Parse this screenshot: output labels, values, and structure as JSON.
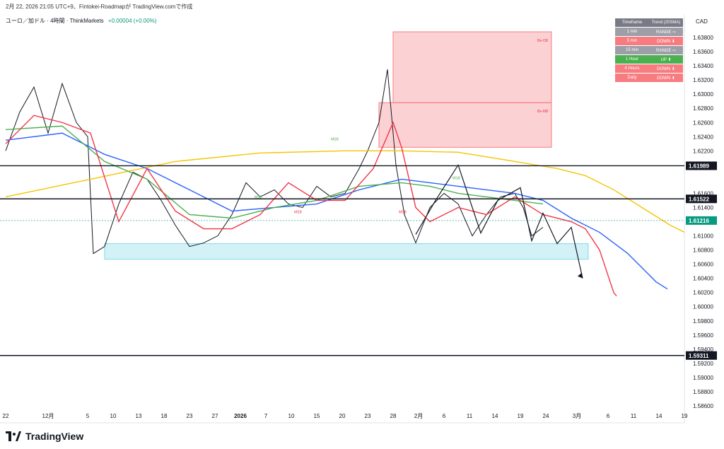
{
  "caption": "2月 22, 2026 21:05 UTC+9、Fintokei-Roadmapが TradingView.comで作成",
  "legend": {
    "symbol": "ユーロ／加ドル · 4時間 · ThinkMarkets",
    "change": "+0.00004 (+0.00%)"
  },
  "currency": "CAD",
  "brand": "TradingView",
  "trend_table": {
    "headers": [
      "Timeframe",
      "Trend (20SMA)"
    ],
    "rows": [
      {
        "tf": "1 min",
        "trend": "RANGE ⇨",
        "color": "gray"
      },
      {
        "tf": "5 min",
        "trend": "DOWN ⬇",
        "color": "red"
      },
      {
        "tf": "15 min",
        "trend": "RANGE ⇨",
        "color": "gray"
      },
      {
        "tf": "1 Hour",
        "trend": "UP ⬆",
        "color": "green"
      },
      {
        "tf": "4 Hours",
        "trend": "DOWN ⬇",
        "color": "red"
      },
      {
        "tf": "Daily",
        "trend": "DOWN ⬇",
        "color": "red"
      }
    ]
  },
  "chart_data": {
    "type": "line",
    "title": "ユーロ／加ドル · 4時間 · ThinkMarkets",
    "xlabel": "",
    "ylabel": "",
    "ylim": [
      1.5852,
      1.6398
    ],
    "y_ticks": [
      "1.63800",
      "1.63600",
      "1.63400",
      "1.63200",
      "1.63000",
      "1.62800",
      "1.62600",
      "1.62400",
      "1.62200",
      "1.61600",
      "1.61400",
      "1.61000",
      "1.60800",
      "1.60600",
      "1.60400",
      "1.60200",
      "1.60000",
      "1.59800",
      "1.59600",
      "1.59400",
      "1.59200",
      "1.59000",
      "1.58800",
      "1.58600"
    ],
    "x_ticks": [
      "22",
      "12月",
      "5",
      "10",
      "13",
      "18",
      "23",
      "27",
      "2026",
      "7",
      "10",
      "15",
      "20",
      "23",
      "28",
      "2月",
      "6",
      "11",
      "14",
      "19",
      "24",
      "3月",
      "6",
      "11",
      "14",
      "19"
    ],
    "x_tick_idx": [
      0,
      15,
      29,
      38,
      47,
      56,
      65,
      74,
      83,
      92,
      101,
      110,
      119,
      128,
      137,
      146,
      155,
      164,
      173,
      182,
      191,
      202,
      213,
      222,
      231,
      240
    ],
    "series": [
      {
        "name": "price",
        "color": "#131722",
        "x": [
          0,
          5,
          10,
          15,
          20,
          25,
          29,
          31,
          35,
          40,
          45,
          50,
          55,
          60,
          65,
          70,
          75,
          80,
          85,
          90,
          95,
          100,
          105,
          110,
          115,
          120,
          125,
          128,
          132,
          135,
          138,
          141,
          145,
          150,
          155,
          160,
          165,
          170,
          175,
          180,
          183,
          186,
          190
        ],
        "values": [
          1.622,
          1.6275,
          1.631,
          1.6245,
          1.6315,
          1.626,
          1.624,
          1.6075,
          1.6085,
          1.6145,
          1.619,
          1.618,
          1.615,
          1.6115,
          1.6085,
          1.609,
          1.61,
          1.613,
          1.6175,
          1.6155,
          1.6165,
          1.6145,
          1.614,
          1.617,
          1.6155,
          1.616,
          1.6195,
          1.622,
          1.626,
          1.6335,
          1.62,
          1.613,
          1.609,
          1.614,
          1.616,
          1.6145,
          1.61,
          1.613,
          1.6155,
          1.616,
          1.614,
          1.61,
          1.6112
        ]
      },
      {
        "name": "yellow",
        "color": "#f5c400",
        "x": [
          0,
          30,
          60,
          90,
          120,
          140,
          160,
          180,
          195,
          205,
          215,
          225,
          235,
          240
        ],
        "values": [
          1.6155,
          1.618,
          1.6205,
          1.6217,
          1.622,
          1.622,
          1.6218,
          1.6205,
          1.6195,
          1.6185,
          1.6165,
          1.614,
          1.6115,
          1.6105
        ]
      },
      {
        "name": "blue",
        "color": "#2962ff",
        "x": [
          0,
          20,
          35,
          50,
          65,
          80,
          95,
          110,
          125,
          140,
          150,
          160,
          170,
          180,
          190,
          200,
          210,
          220,
          230,
          234
        ],
        "values": [
          1.6235,
          1.6245,
          1.6215,
          1.6195,
          1.6165,
          1.6135,
          1.614,
          1.6145,
          1.6165,
          1.618,
          1.6175,
          1.617,
          1.6165,
          1.616,
          1.615,
          1.6125,
          1.6105,
          1.6075,
          1.6035,
          1.6025
        ]
      },
      {
        "name": "green",
        "color": "#4caf50",
        "x": [
          0,
          20,
          35,
          50,
          65,
          80,
          95,
          110,
          125,
          140,
          150,
          160,
          170,
          180,
          190
        ],
        "values": [
          1.625,
          1.6255,
          1.6205,
          1.618,
          1.613,
          1.6125,
          1.614,
          1.615,
          1.617,
          1.6175,
          1.617,
          1.616,
          1.6155,
          1.615,
          1.6145
        ]
      },
      {
        "name": "red",
        "color": "#f23645",
        "x": [
          0,
          10,
          20,
          30,
          40,
          50,
          60,
          70,
          80,
          90,
          100,
          110,
          120,
          130,
          137,
          140,
          145,
          150,
          160,
          170,
          180,
          190,
          200,
          205,
          210,
          215,
          216
        ],
        "values": [
          1.623,
          1.627,
          1.626,
          1.6245,
          1.612,
          1.6195,
          1.6135,
          1.611,
          1.611,
          1.613,
          1.6175,
          1.615,
          1.615,
          1.6195,
          1.626,
          1.6225,
          1.614,
          1.612,
          1.614,
          1.613,
          1.6155,
          1.613,
          1.612,
          1.611,
          1.608,
          1.602,
          1.6015
        ]
      },
      {
        "name": "projection",
        "color": "#131722",
        "x": [
          145,
          152,
          160,
          168,
          174,
          182,
          186,
          190,
          195,
          200,
          204
        ],
        "values": [
          1.6102,
          1.615,
          1.62,
          1.6104,
          1.615,
          1.6168,
          1.6093,
          1.6132,
          1.6089,
          1.6112,
          1.604
        ]
      }
    ],
    "levels": [
      {
        "value": 1.61989,
        "label": "1.61989",
        "color": "#131722"
      },
      {
        "value": 1.61522,
        "label": "1.61522",
        "color": "#131722"
      },
      {
        "value": 1.61216,
        "label": "1.61216",
        "color": "#089981"
      },
      {
        "value": 1.59311,
        "label": "1.59311",
        "color": "#131722"
      }
    ],
    "zones": [
      {
        "label": "Be-OB",
        "x0": 137,
        "x1": 193,
        "y0": 1.6288,
        "y1": 1.6388,
        "color": "#f77c80"
      },
      {
        "label": "Be-MB",
        "x0": 132,
        "x1": 193,
        "y0": 1.6225,
        "y1": 1.6288,
        "color": "#f77c80"
      },
      {
        "label": "",
        "x0": 35,
        "x1": 206,
        "y0": 1.6067,
        "y1": 1.6089,
        "color": "#7fdbe8"
      }
    ],
    "annotations": [
      {
        "text": "MSB",
        "x": 115,
        "y": 1.6235,
        "color": "#4caf50"
      },
      {
        "text": "MSB",
        "x": 88,
        "y": 1.6153,
        "color": "#4caf50"
      },
      {
        "text": "MSB",
        "x": 102,
        "y": 1.6132,
        "color": "#f23645"
      },
      {
        "text": "MSB",
        "x": 139,
        "y": 1.6132,
        "color": "#f23645"
      },
      {
        "text": "MSB",
        "x": 158,
        "y": 1.618,
        "color": "#4caf50"
      }
    ]
  }
}
